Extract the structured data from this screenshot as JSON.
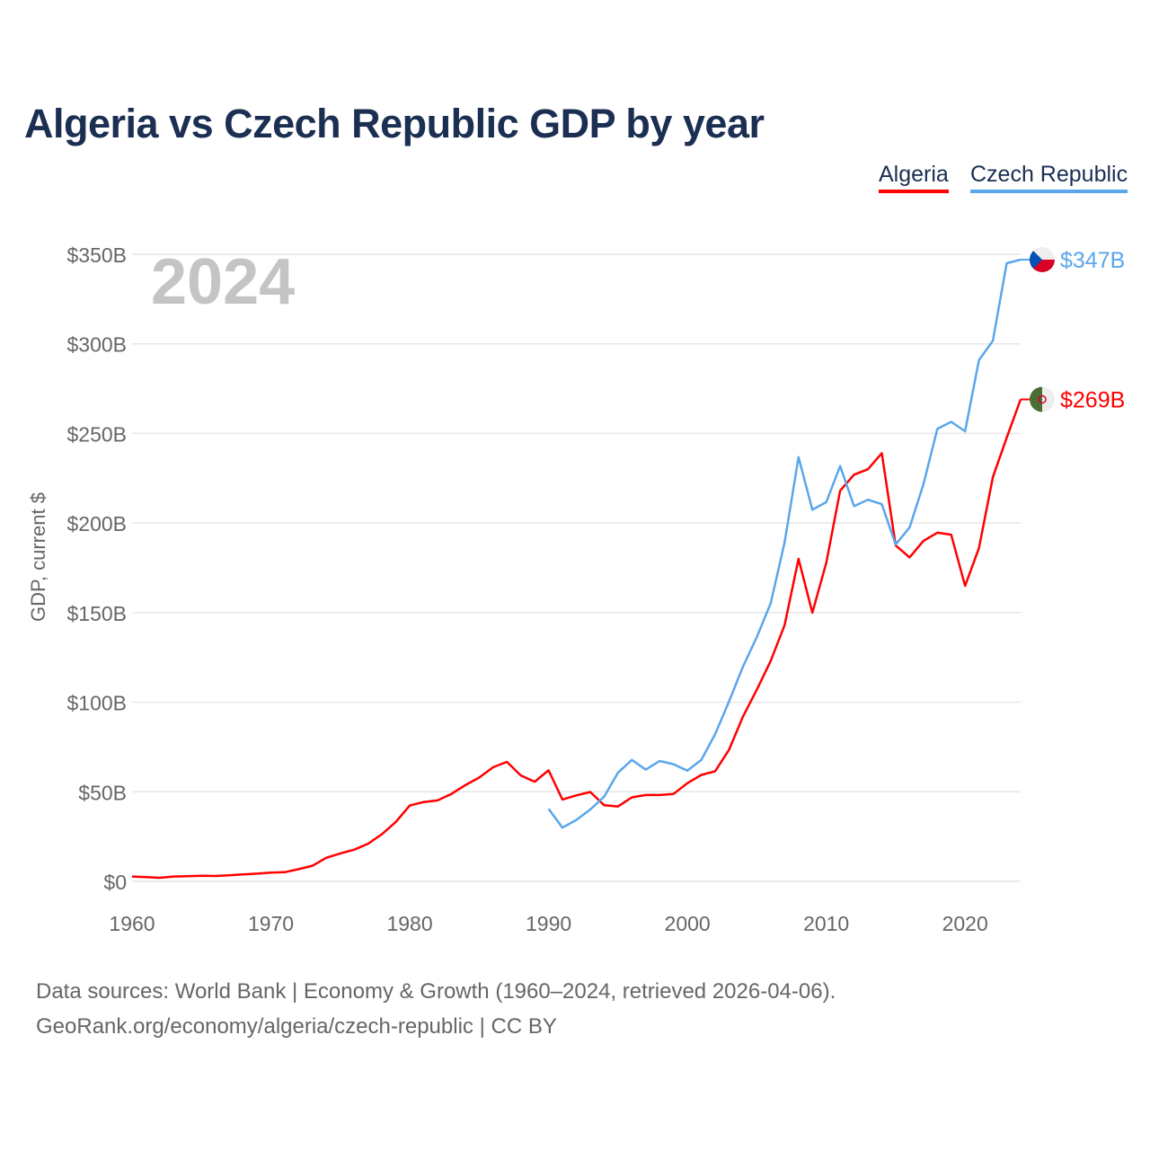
{
  "title": "Algeria vs Czech Republic GDP by year",
  "legend": [
    {
      "name": "Algeria",
      "color": "#ff0000"
    },
    {
      "name": "Czech Republic",
      "color": "#5aa6ec"
    }
  ],
  "year_watermark": "2024",
  "footer": {
    "line1": "Data sources: World Bank | Economy & Growth (1960–2024, retrieved 2026-04-06).",
    "line2": "GeoRank.org/economy/algeria/czech-republic | CC BY"
  },
  "chart_data": {
    "type": "line",
    "title": "Algeria vs Czech Republic GDP by year",
    "xlabel": "",
    "ylabel": "GDP, current $",
    "xlim": [
      1960,
      2024
    ],
    "ylim": [
      0,
      350
    ],
    "x_ticks": [
      1960,
      1970,
      1980,
      1990,
      2000,
      2010,
      2020
    ],
    "x_tick_labels": [
      "1960",
      "1970",
      "1980",
      "1990",
      "2000",
      "2010",
      "2020"
    ],
    "y_ticks": [
      0,
      50,
      100,
      150,
      200,
      250,
      300,
      350
    ],
    "y_tick_labels": [
      "$0",
      "$50B",
      "$100B",
      "$150B",
      "$200B",
      "$250B",
      "$300B",
      "$350B"
    ],
    "grid": true,
    "legend_position": "top-right",
    "units": "billions USD",
    "series": [
      {
        "name": "Algeria",
        "color": "#ff0000",
        "end_label": "$269B",
        "start_year": 1960,
        "values": [
          2.7,
          2.4,
          2.0,
          2.7,
          2.9,
          3.1,
          3.0,
          3.4,
          3.9,
          4.3,
          4.9,
          5.1,
          6.8,
          8.7,
          13.2,
          15.6,
          17.7,
          21.0,
          26.4,
          33.2,
          42.3,
          44.3,
          45.2,
          48.8,
          53.7,
          57.9,
          63.7,
          66.7,
          59.1,
          55.6,
          62.0,
          45.7,
          48.0,
          49.9,
          42.5,
          41.8,
          46.9,
          48.2,
          48.2,
          48.8,
          54.8,
          59.4,
          61.5,
          73.5,
          91.9,
          107.0,
          123.0,
          143.0,
          180.0,
          150.0,
          177.8,
          218.0,
          227.0,
          230.0,
          239.0,
          187.5,
          180.8,
          190.0,
          194.6,
          193.5,
          164.9,
          186.0,
          225.6,
          247.6,
          269.0
        ]
      },
      {
        "name": "Czech Republic",
        "color": "#5aa6ec",
        "end_label": "$347B",
        "start_year": 1990,
        "values": [
          40.5,
          30.0,
          34.3,
          40.1,
          47.3,
          60.7,
          67.8,
          62.4,
          67.2,
          65.4,
          61.8,
          67.8,
          82.2,
          100.5,
          119.8,
          136.4,
          155.2,
          189.2,
          236.8,
          207.4,
          211.7,
          231.8,
          209.4,
          213.0,
          210.5,
          188.0,
          197.5,
          221.6,
          252.5,
          256.5,
          251.2,
          290.9,
          301.7,
          345.0,
          347.0
        ]
      }
    ]
  }
}
